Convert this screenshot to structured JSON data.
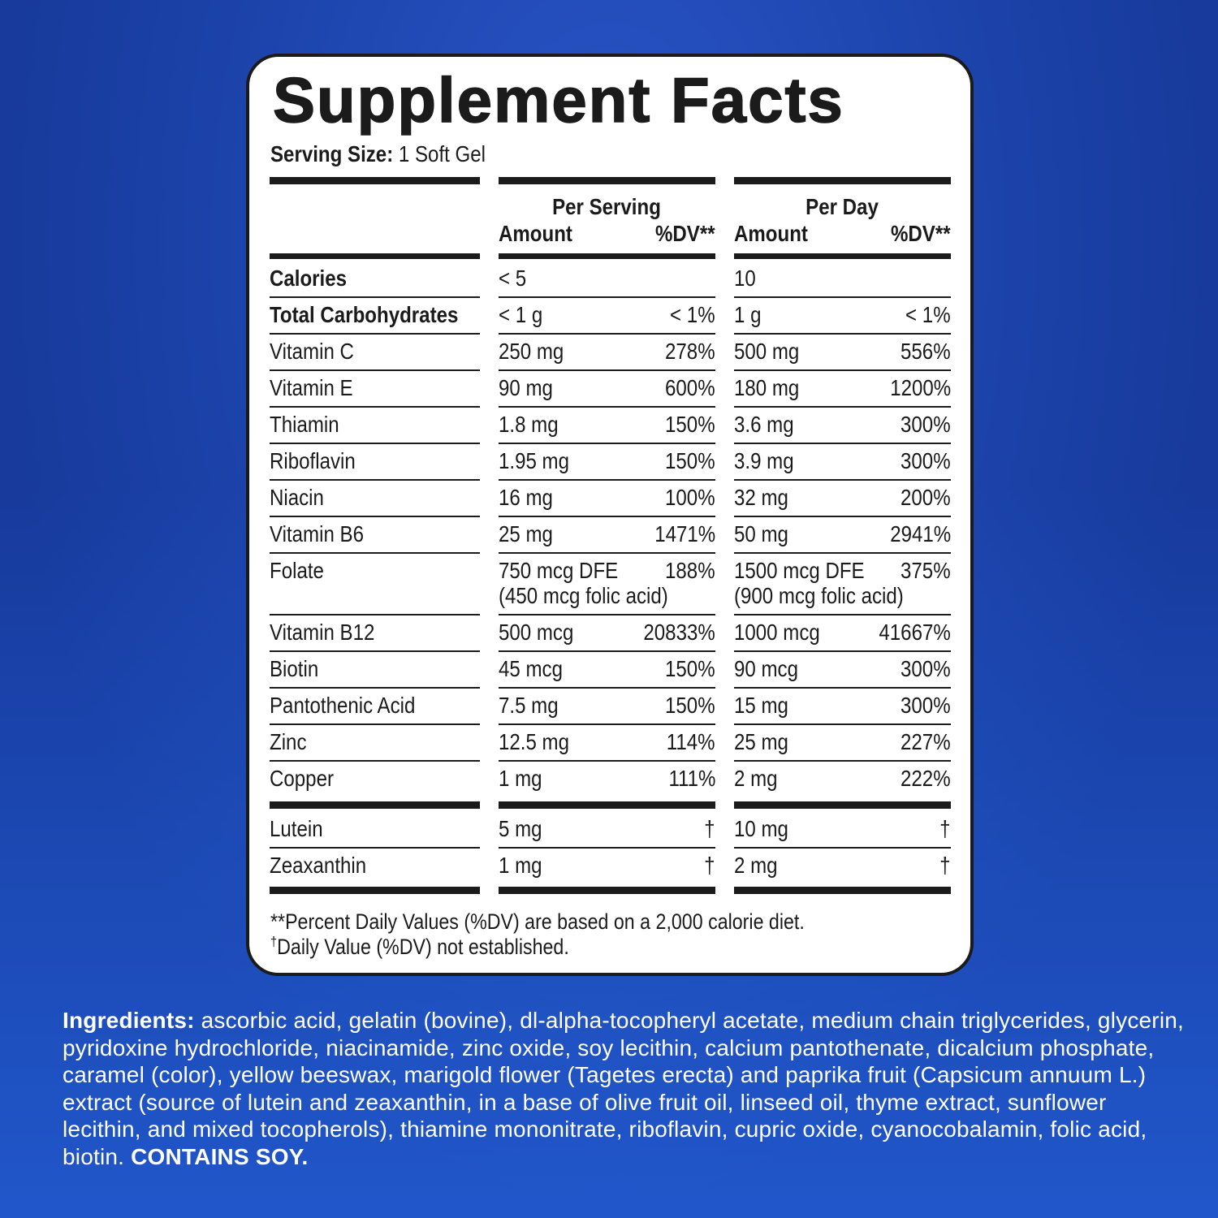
{
  "title": "Supplement Facts",
  "serving_size": {
    "label": "Serving Size:",
    "value": "1 Soft Gel"
  },
  "header": {
    "per_serving": "Per Serving",
    "per_day": "Per Day",
    "amount": "Amount",
    "dv": "%DV**"
  },
  "nutrients": [
    {
      "nutrient": "Calories",
      "per_serving_amount": "< 5",
      "per_day_amount": "10"
    },
    {
      "nutrient": "Total Carbohydrates",
      "per_serving_amount": "< 1 g",
      "per_serving_dv": "< 1%",
      "per_day_amount": "1 g",
      "per_day_dv": "< 1%"
    },
    {
      "nutrient": "Vitamin C",
      "per_serving_amount": "250 mg",
      "per_serving_dv": "278%",
      "per_day_amount": "500 mg",
      "per_day_dv": "556%"
    },
    {
      "nutrient": "Vitamin E",
      "per_serving_amount": "90 mg",
      "per_serving_dv": "600%",
      "per_day_amount": "180 mg",
      "per_day_dv": "1200%"
    },
    {
      "nutrient": "Thiamin",
      "per_serving_amount": "1.8 mg",
      "per_serving_dv": "150%",
      "per_day_amount": "3.6 mg",
      "per_day_dv": "300%"
    },
    {
      "nutrient": "Riboflavin",
      "per_serving_amount": "1.95 mg",
      "per_serving_dv": "150%",
      "per_day_amount": "3.9 mg",
      "per_day_dv": "300%"
    },
    {
      "nutrient": "Niacin",
      "per_serving_amount": "16 mg",
      "per_serving_dv": "100%",
      "per_day_amount": "32 mg",
      "per_day_dv": "200%"
    },
    {
      "nutrient": "Vitamin B6",
      "per_serving_amount": "25 mg",
      "per_serving_dv": "1471%",
      "per_day_amount": "50 mg",
      "per_day_dv": "2941%"
    },
    {
      "nutrient": "Folate",
      "per_serving_amount": "750 mcg DFE",
      "per_serving_note": "(450 mcg folic acid)",
      "per_serving_dv": "188%",
      "per_day_amount": "1500 mcg DFE",
      "per_day_note": "(900 mcg folic acid)",
      "per_day_dv": "375%"
    },
    {
      "nutrient": "Vitamin B12",
      "per_serving_amount": "500 mcg",
      "per_serving_dv": "20833%",
      "per_day_amount": "1000 mcg",
      "per_day_dv": "41667%"
    },
    {
      "nutrient": "Biotin",
      "per_serving_amount": "45 mcg",
      "per_serving_dv": "150%",
      "per_day_amount": "90 mcg",
      "per_day_dv": "300%"
    },
    {
      "nutrient": "Pantothenic Acid",
      "per_serving_amount": "7.5 mg",
      "per_serving_dv": "150%",
      "per_day_amount": "15 mg",
      "per_day_dv": "300%"
    },
    {
      "nutrient": "Zinc",
      "per_serving_amount": "12.5 mg",
      "per_serving_dv": "114%",
      "per_day_amount": "25 mg",
      "per_day_dv": "227%"
    },
    {
      "nutrient": "Copper",
      "per_serving_amount": "1 mg",
      "per_serving_dv": "111%",
      "per_day_amount": "2 mg",
      "per_day_dv": "222%"
    }
  ],
  "other_ingredients": [
    {
      "nutrient": "Lutein",
      "per_serving_amount": "5 mg",
      "per_serving_dv": "†",
      "per_day_amount": "10 mg",
      "per_day_dv": "†"
    },
    {
      "nutrient": "Zeaxanthin",
      "per_serving_amount": "1 mg",
      "per_serving_dv": "†",
      "per_day_amount": "2 mg",
      "per_day_dv": "†"
    }
  ],
  "footnotes": [
    {
      "text": "**Percent Daily Values (%DV) are based on a 2,000 calorie diet."
    },
    {
      "marker": "†",
      "text": "Daily Value (%DV) not established."
    }
  ],
  "ingredients": {
    "label": "Ingredients:",
    "text": "ascorbic acid, gelatin (bovine), dl-alpha-tocopheryl acetate, medium chain triglycerides, glycerin, pyridoxine hydrochloride, niacinamide, zinc oxide, soy lecithin, calcium pantothenate, dicalcium phosphate, caramel (color), yellow beeswax, marigold flower (Tagetes erecta) and paprika fruit (Capsicum annuum L.) extract (source of lutein and zeaxanthin, in a base of olive fruit oil, linseed oil, thyme extract, sunflower lecithin, and mixed tocopherols), thiamine mononitrate, riboflavin, cupric oxide, cyanocobalamin, folic acid, biotin.",
    "allergen": "CONTAINS SOY."
  }
}
